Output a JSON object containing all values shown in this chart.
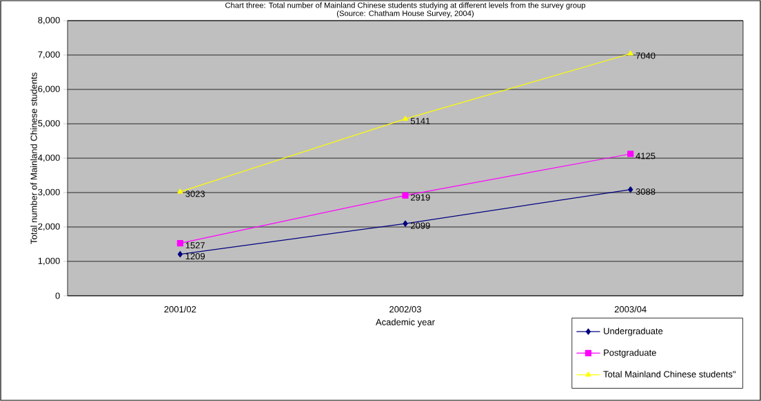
{
  "chart_data": {
    "type": "line",
    "title": "Chart three: Total number of Mainland Chinese students studying at different levels from the survey group",
    "subtitle": "(Source: Chatham House Survey, 2004)",
    "xlabel": "Academic year",
    "ylabel": "Total number of Mainland Chinese students",
    "categories": [
      "2001/02",
      "2002/03",
      "2003/04"
    ],
    "series": [
      {
        "name": "Undergraduate",
        "color": "#000080",
        "marker": "diamond",
        "values": [
          1209,
          2099,
          3088
        ]
      },
      {
        "name": "Postgraduate",
        "color": "#ff00ff",
        "marker": "square",
        "values": [
          1527,
          2919,
          4125
        ]
      },
      {
        "name": "Total Mainland Chinese students\"",
        "color": "#ffff00",
        "marker": "triangle",
        "values": [
          3023,
          5141,
          7040
        ]
      }
    ],
    "ylim": [
      0,
      8000
    ],
    "yticks": [
      0,
      {
        "value": 1000,
        "label": "1,000"
      },
      {
        "value": 2000,
        "label": "2,000"
      },
      {
        "value": 3000,
        "label": "3,000"
      },
      {
        "value": 4000,
        "label": "4,000"
      },
      {
        "value": 5000,
        "label": "5,000"
      },
      {
        "value": 6000,
        "label": "6,000"
      },
      {
        "value": 7000,
        "label": "7,000"
      },
      {
        "value": 8000,
        "label": "8,000"
      }
    ],
    "grid": "y",
    "legend": "bottom right",
    "data_labels": true,
    "line_style": "solid"
  }
}
